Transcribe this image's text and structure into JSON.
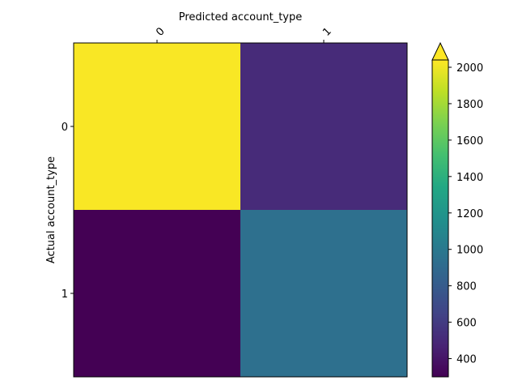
{
  "chart_data": {
    "type": "heatmap",
    "title": "",
    "xlabel": "Predicted account_type",
    "ylabel": "Actual account_type",
    "x_categories": [
      "0",
      "1"
    ],
    "y_categories": [
      "0",
      "1"
    ],
    "values": [
      [
        2030,
        510
      ],
      [
        300,
        940
      ]
    ],
    "colorbar": {
      "cmap": "viridis",
      "vmin": 300,
      "vmax": 2040,
      "ticks": [
        400,
        600,
        800,
        1000,
        1200,
        1400,
        1600,
        1800,
        2000
      ],
      "extend": "max"
    },
    "x_tick_position": "top",
    "grid": false
  }
}
